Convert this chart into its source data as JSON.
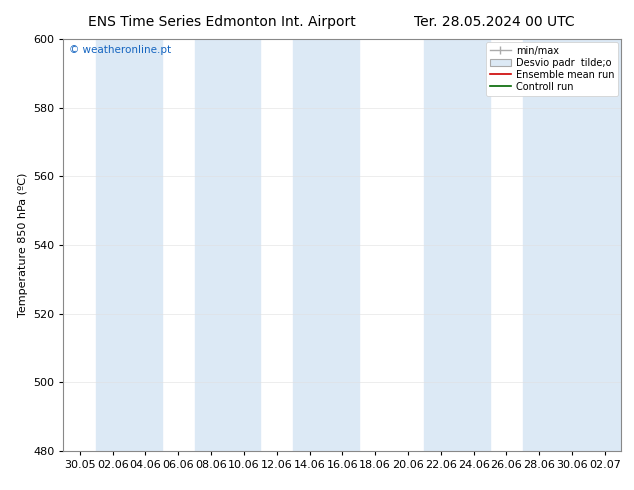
{
  "title_left": "ENS Time Series Edmonton Int. Airport",
  "title_right": "Ter. 28.05.2024 00 UTC",
  "ylabel": "Temperature 850 hPa (ºC)",
  "ylim": [
    480,
    600
  ],
  "yticks": [
    480,
    500,
    520,
    540,
    560,
    580,
    600
  ],
  "xlabels": [
    "30.05",
    "02.06",
    "04.06",
    "06.06",
    "08.06",
    "10.06",
    "12.06",
    "14.06",
    "16.06",
    "18.06",
    "20.06",
    "22.06",
    "24.06",
    "26.06",
    "28.06",
    "30.06",
    "02.07"
  ],
  "watermark": "© weatheronline.pt",
  "watermark_color": "#1565c0",
  "bg_color": "#ffffff",
  "plot_bg_color": "#ffffff",
  "band_color": "#dce9f5",
  "legend_entries": [
    "min/max",
    "Desvio padr  tilde;o",
    "Ensemble mean run",
    "Controll run"
  ],
  "title_fontsize": 10,
  "axis_fontsize": 8,
  "tick_fontsize": 8,
  "legend_fontsize": 7
}
